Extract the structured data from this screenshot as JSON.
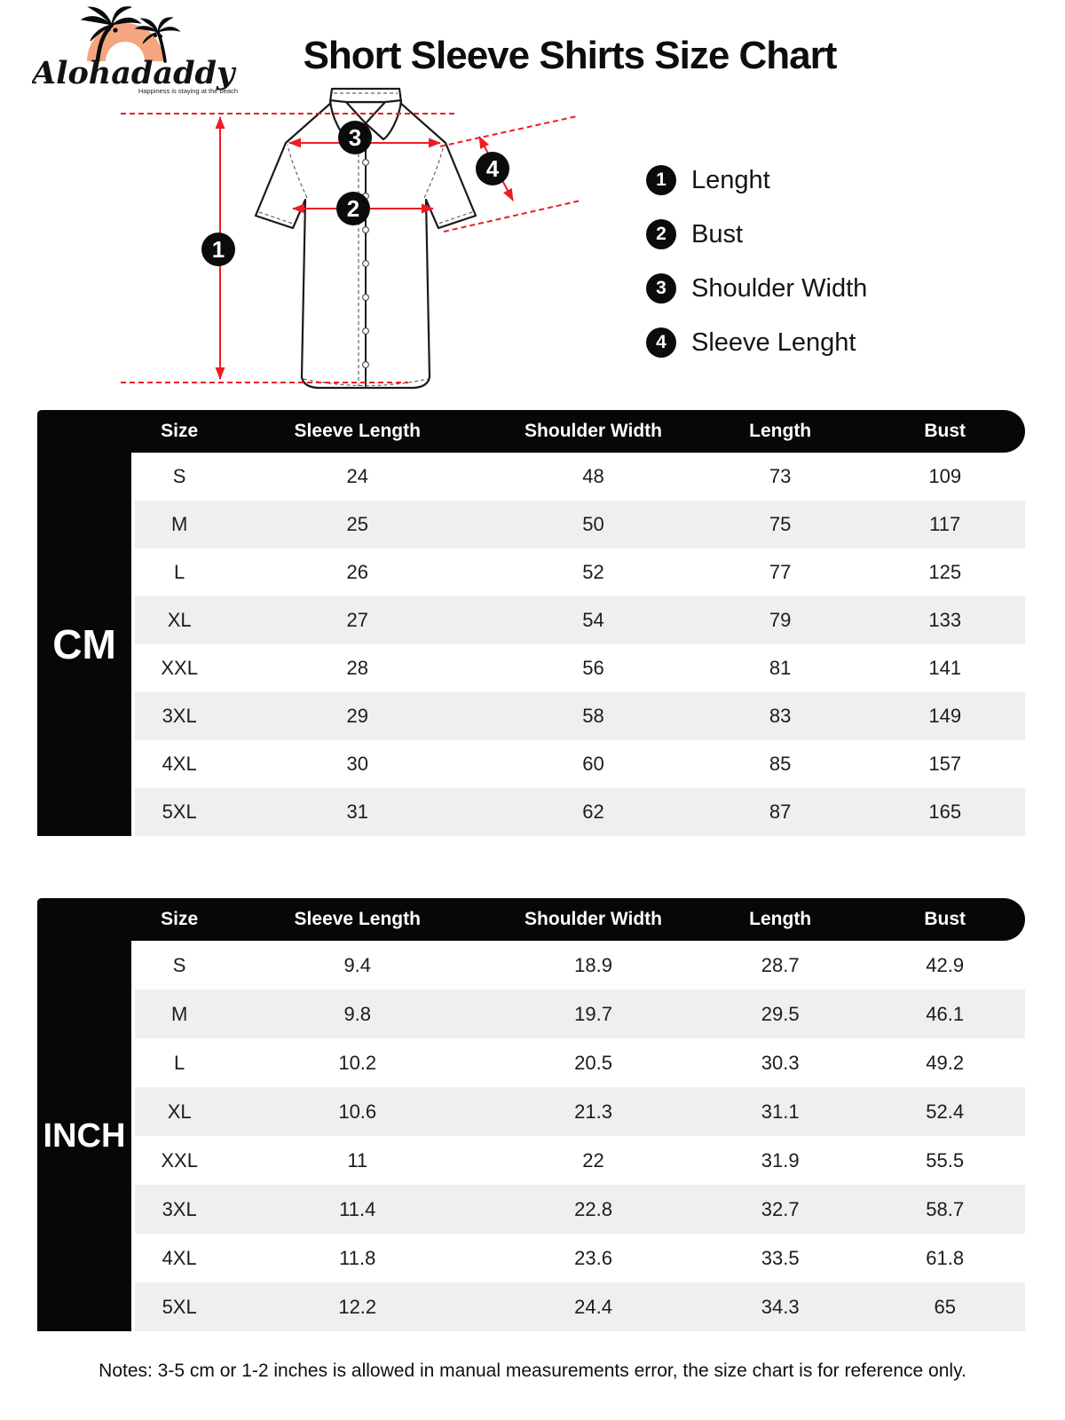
{
  "logo": {
    "brand": "Alohadaddy",
    "tagline": "Happiness is staying at the beach"
  },
  "title": "Short Sleeve Shirts Size Chart",
  "legend": [
    {
      "num": "1",
      "label": "Lenght"
    },
    {
      "num": "2",
      "label": "Bust"
    },
    {
      "num": "3",
      "label": "Shoulder Width"
    },
    {
      "num": "4",
      "label": "Sleeve Lenght"
    }
  ],
  "diagram": {
    "badges": [
      "1",
      "2",
      "3",
      "4"
    ]
  },
  "tables": {
    "columns": [
      "Size",
      "Sleeve Length",
      "Shoulder Width",
      "Length",
      "Bust"
    ],
    "cm": {
      "unit_label": "CM",
      "rows": [
        [
          "S",
          "24",
          "48",
          "73",
          "109"
        ],
        [
          "M",
          "25",
          "50",
          "75",
          "117"
        ],
        [
          "L",
          "26",
          "52",
          "77",
          "125"
        ],
        [
          "XL",
          "27",
          "54",
          "79",
          "133"
        ],
        [
          "XXL",
          "28",
          "56",
          "81",
          "141"
        ],
        [
          "3XL",
          "29",
          "58",
          "83",
          "149"
        ],
        [
          "4XL",
          "30",
          "60",
          "85",
          "157"
        ],
        [
          "5XL",
          "31",
          "62",
          "87",
          "165"
        ]
      ]
    },
    "inch": {
      "unit_label": "INCH",
      "rows": [
        [
          "S",
          "9.4",
          "18.9",
          "28.7",
          "42.9"
        ],
        [
          "M",
          "9.8",
          "19.7",
          "29.5",
          "46.1"
        ],
        [
          "L",
          "10.2",
          "20.5",
          "30.3",
          "49.2"
        ],
        [
          "XL",
          "10.6",
          "21.3",
          "31.1",
          "52.4"
        ],
        [
          "XXL",
          "11",
          "22",
          "31.9",
          "55.5"
        ],
        [
          "3XL",
          "11.4",
          "22.8",
          "32.7",
          "58.7"
        ],
        [
          "4XL",
          "11.8",
          "23.6",
          "33.5",
          "61.8"
        ],
        [
          "5XL",
          "12.2",
          "24.4",
          "34.3",
          "65"
        ]
      ]
    }
  },
  "notes": "Notes: 3-5 cm or 1-2 inches is allowed in manual measurements error, the size chart is for reference only.",
  "colors": {
    "accent_red": "#ed1c24",
    "logo_orange": "#f5a57f",
    "row_alt": "#efefef",
    "bar_black": "#070707"
  }
}
